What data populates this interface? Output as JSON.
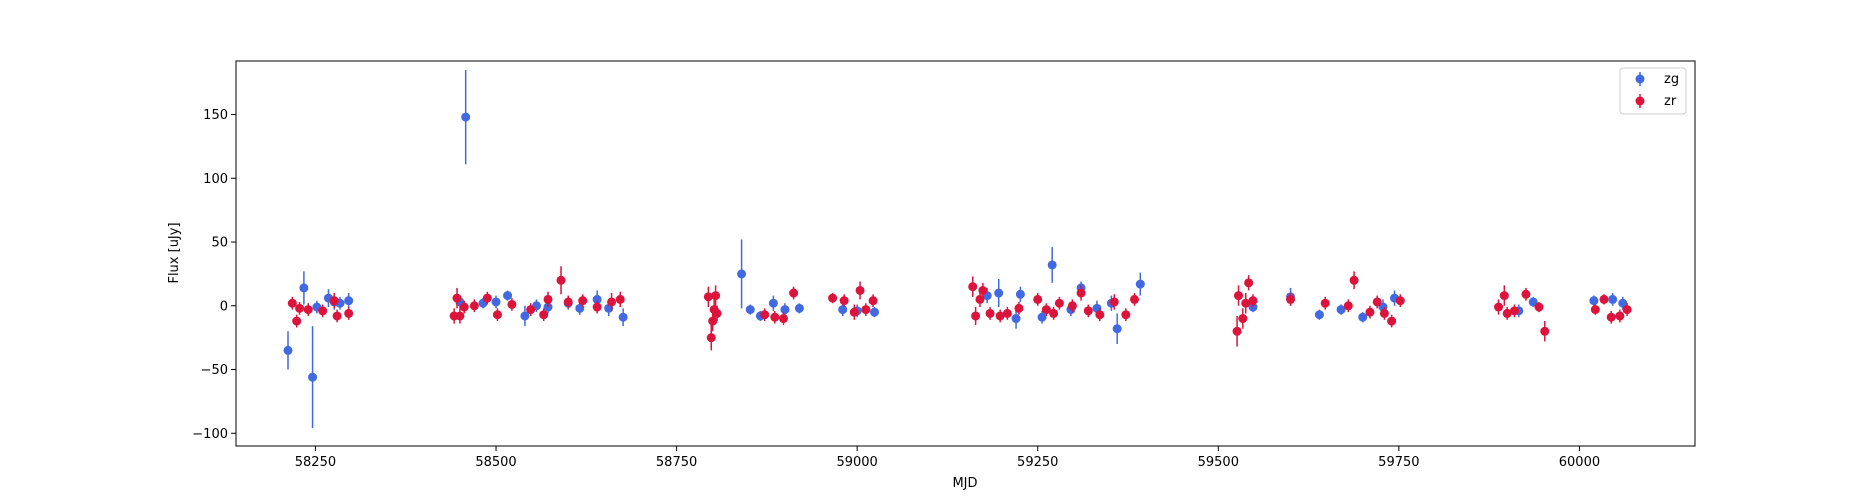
{
  "chart_data": {
    "type": "scatter",
    "title": "",
    "xlabel": "MJD",
    "ylabel": "Flux [uJy]",
    "xlim": [
      58140,
      60160
    ],
    "ylim": [
      -110,
      192
    ],
    "x_ticks": [
      58250,
      58500,
      58750,
      59000,
      59250,
      59500,
      59750,
      60000
    ],
    "y_ticks": [
      -100,
      -50,
      0,
      50,
      100,
      150
    ],
    "grid": false,
    "legend_position": "top-right",
    "series": [
      {
        "name": "zg",
        "color": "#4169e1",
        "points": [
          [
            58212,
            -35,
            15
          ],
          [
            58234,
            14,
            13
          ],
          [
            58246,
            -56,
            40
          ],
          [
            58252,
            -1,
            5
          ],
          [
            58268,
            6,
            7
          ],
          [
            58276,
            3,
            6
          ],
          [
            58284,
            2,
            5
          ],
          [
            58296,
            4,
            6
          ],
          [
            58450,
            3,
            5
          ],
          [
            58458,
            148,
            37
          ],
          [
            58482,
            2,
            4
          ],
          [
            58500,
            3,
            5
          ],
          [
            58516,
            8,
            4
          ],
          [
            58540,
            -8,
            8
          ],
          [
            58556,
            0,
            5
          ],
          [
            58572,
            -1,
            5
          ],
          [
            58600,
            2,
            5
          ],
          [
            58616,
            -2,
            5
          ],
          [
            58640,
            5,
            7
          ],
          [
            58656,
            -2,
            6
          ],
          [
            58676,
            -9,
            7
          ],
          [
            58840,
            25,
            27
          ],
          [
            58852,
            -3,
            4
          ],
          [
            58866,
            -8,
            4
          ],
          [
            58884,
            2,
            6
          ],
          [
            58900,
            -3,
            5
          ],
          [
            58920,
            -2,
            4
          ],
          [
            58980,
            -3,
            5
          ],
          [
            59000,
            -4,
            5
          ],
          [
            59024,
            -5,
            4
          ],
          [
            59180,
            8,
            6
          ],
          [
            59196,
            10,
            11
          ],
          [
            59220,
            -10,
            8
          ],
          [
            59226,
            9,
            6
          ],
          [
            59256,
            -9,
            5
          ],
          [
            59270,
            32,
            14
          ],
          [
            59296,
            -3,
            5
          ],
          [
            59310,
            14,
            5
          ],
          [
            59332,
            -2,
            6
          ],
          [
            59352,
            2,
            6
          ],
          [
            59360,
            -18,
            12
          ],
          [
            59392,
            17,
            9
          ],
          [
            59548,
            -1,
            4
          ],
          [
            59600,
            7,
            7
          ],
          [
            59640,
            -7,
            4
          ],
          [
            59670,
            -3,
            4
          ],
          [
            59700,
            -9,
            4
          ],
          [
            59728,
            -1,
            6
          ],
          [
            59744,
            6,
            6
          ],
          [
            59916,
            -4,
            5
          ],
          [
            59936,
            3,
            4
          ],
          [
            60020,
            4,
            4
          ],
          [
            60046,
            5,
            5
          ],
          [
            60060,
            2,
            5
          ]
        ]
      },
      {
        "name": "zr",
        "color": "#dc143c",
        "points": [
          [
            58218,
            2,
            5
          ],
          [
            58224,
            -12,
            5
          ],
          [
            58228,
            -2,
            5
          ],
          [
            58240,
            -3,
            5
          ],
          [
            58260,
            -4,
            5
          ],
          [
            58276,
            4,
            6
          ],
          [
            58280,
            -8,
            5
          ],
          [
            58296,
            -6,
            5
          ],
          [
            58442,
            -8,
            6
          ],
          [
            58446,
            6,
            8
          ],
          [
            58450,
            -8,
            6
          ],
          [
            58456,
            -1,
            5
          ],
          [
            58470,
            0,
            5
          ],
          [
            58488,
            6,
            5
          ],
          [
            58502,
            -7,
            5
          ],
          [
            58522,
            1,
            5
          ],
          [
            58548,
            -3,
            5
          ],
          [
            58566,
            -7,
            5
          ],
          [
            58572,
            5,
            6
          ],
          [
            58590,
            20,
            11
          ],
          [
            58600,
            3,
            5
          ],
          [
            58620,
            4,
            5
          ],
          [
            58640,
            -1,
            5
          ],
          [
            58660,
            3,
            7
          ],
          [
            58672,
            5,
            6
          ],
          [
            58794,
            7,
            8
          ],
          [
            58798,
            -25,
            10
          ],
          [
            58800,
            -12,
            8
          ],
          [
            58802,
            -3,
            8
          ],
          [
            58804,
            8,
            8
          ],
          [
            58806,
            -6,
            6
          ],
          [
            58872,
            -7,
            5
          ],
          [
            58886,
            -9,
            5
          ],
          [
            58898,
            -10,
            5
          ],
          [
            58912,
            10,
            5
          ],
          [
            58966,
            6,
            4
          ],
          [
            58982,
            4,
            5
          ],
          [
            58996,
            -5,
            6
          ],
          [
            59004,
            12,
            7
          ],
          [
            59012,
            -3,
            5
          ],
          [
            59022,
            4,
            5
          ],
          [
            59160,
            15,
            8
          ],
          [
            59164,
            -8,
            7
          ],
          [
            59170,
            5,
            6
          ],
          [
            59174,
            12,
            6
          ],
          [
            59184,
            -6,
            5
          ],
          [
            59198,
            -8,
            5
          ],
          [
            59208,
            -6,
            5
          ],
          [
            59224,
            -2,
            5
          ],
          [
            59250,
            5,
            5
          ],
          [
            59262,
            -3,
            5
          ],
          [
            59272,
            -6,
            5
          ],
          [
            59280,
            2,
            5
          ],
          [
            59298,
            0,
            5
          ],
          [
            59310,
            10,
            6
          ],
          [
            59320,
            -4,
            5
          ],
          [
            59336,
            -7,
            5
          ],
          [
            59356,
            3,
            6
          ],
          [
            59372,
            -7,
            5
          ],
          [
            59384,
            5,
            5
          ],
          [
            59526,
            -20,
            12
          ],
          [
            59528,
            8,
            8
          ],
          [
            59534,
            -10,
            8
          ],
          [
            59538,
            2,
            8
          ],
          [
            59542,
            18,
            6
          ],
          [
            59548,
            4,
            5
          ],
          [
            59600,
            5,
            5
          ],
          [
            59648,
            2,
            5
          ],
          [
            59680,
            0,
            5
          ],
          [
            59688,
            20,
            7
          ],
          [
            59710,
            -5,
            5
          ],
          [
            59720,
            3,
            5
          ],
          [
            59730,
            -6,
            5
          ],
          [
            59740,
            -12,
            5
          ],
          [
            59752,
            4,
            5
          ],
          [
            59888,
            -1,
            6
          ],
          [
            59896,
            8,
            8
          ],
          [
            59900,
            -6,
            5
          ],
          [
            59910,
            -4,
            5
          ],
          [
            59926,
            9,
            5
          ],
          [
            59944,
            -1,
            4
          ],
          [
            59952,
            -20,
            8
          ],
          [
            60022,
            -3,
            4
          ],
          [
            60034,
            5,
            4
          ],
          [
            60044,
            -9,
            5
          ],
          [
            60056,
            -8,
            5
          ],
          [
            60066,
            -3,
            5
          ]
        ]
      }
    ]
  }
}
